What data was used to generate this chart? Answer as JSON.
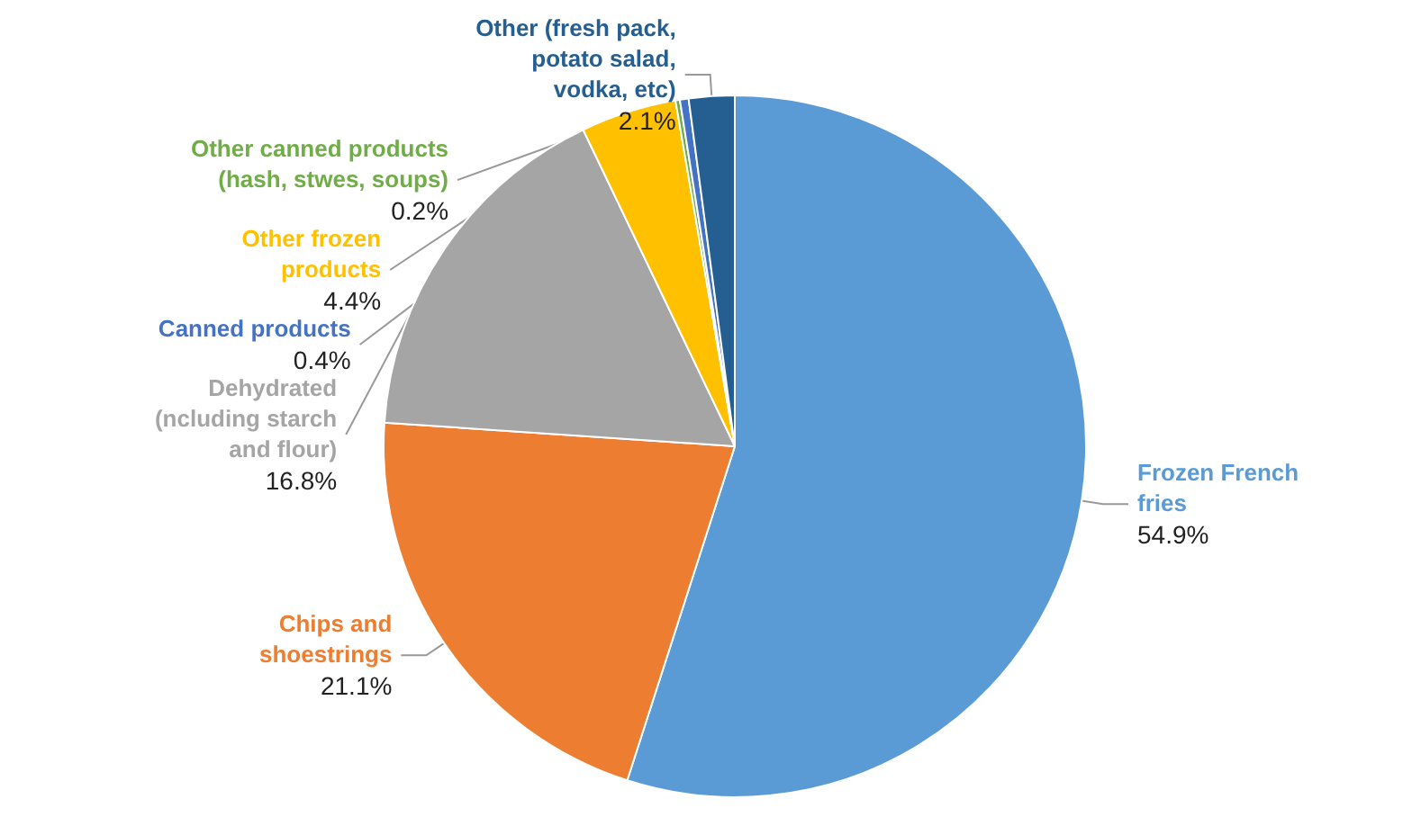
{
  "chart_data": {
    "type": "pie",
    "categories": [
      "Frozen French\nfries",
      "Chips and\nshoestrings",
      "Dehydrated\n(ncluding starch\nand flour)",
      "Other frozen\nproducts",
      "Other canned products\n(hash, stwes, soups)",
      "Canned products",
      "Other (fresh pack,\npotato salad,\nvodka, etc)"
    ],
    "values": [
      54.9,
      21.1,
      16.8,
      4.4,
      0.2,
      0.4,
      2.1
    ],
    "value_labels": [
      "54.9%",
      "21.1%",
      "16.8%",
      "4.4%",
      "0.2%",
      "0.4%",
      "2.1%"
    ],
    "colors": [
      "#5b9bd5",
      "#ed7d31",
      "#a5a5a5",
      "#ffc000",
      "#70ad47",
      "#4472c4",
      "#255e91"
    ]
  }
}
